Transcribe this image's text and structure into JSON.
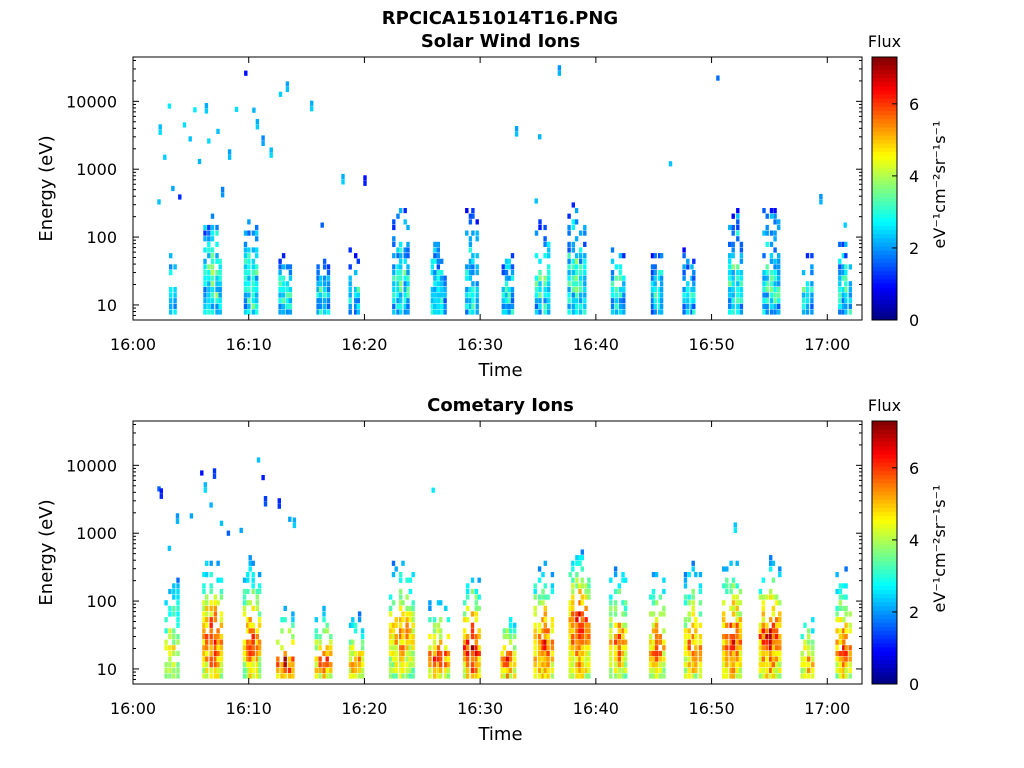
{
  "figure": {
    "title": "RPCICA151014T16.PNG"
  },
  "chart_data": [
    {
      "type": "heatmap",
      "title": "Solar Wind Ions",
      "xlabel": "Time",
      "ylabel": "Energy (eV)",
      "x_tick_labels": [
        "16:00",
        "16:10",
        "16:20",
        "16:30",
        "16:40",
        "16:50",
        "17:00"
      ],
      "x_range_minutes": [
        0,
        63
      ],
      "y_scale": "log",
      "y_range": [
        6,
        45000
      ],
      "y_tick_values": [
        10,
        100,
        1000,
        10000
      ],
      "y_tick_labels": [
        "10",
        "100",
        "1000",
        "10000"
      ],
      "colorbar": {
        "title": "Flux",
        "unit_label": "eV⁻¹cm⁻²sr⁻¹s⁻¹",
        "range": [
          0,
          7.3
        ],
        "tick_values": [
          0,
          2,
          4,
          6
        ],
        "tick_labels": [
          "0",
          "2",
          "4",
          "6"
        ],
        "colormap": "jet"
      },
      "intensity_scale": 0.55,
      "sparse_points": [
        [
          2.1,
          330,
          2.3
        ],
        [
          2.2,
          3500,
          2.5
        ],
        [
          2.6,
          1500,
          2.4
        ],
        [
          3.0,
          8500,
          2.6
        ],
        [
          3.3,
          520,
          2.1
        ],
        [
          3.9,
          390,
          1.2
        ],
        [
          4.3,
          4500,
          2.5
        ],
        [
          4.8,
          2800,
          2.3
        ],
        [
          5.2,
          7500,
          2.6
        ],
        [
          5.6,
          1300,
          2.2
        ],
        [
          6.2,
          7200,
          2.4
        ],
        [
          6.4,
          2600,
          2.5
        ],
        [
          7.2,
          3600,
          2.3
        ],
        [
          7.6,
          420,
          2.0
        ],
        [
          8.2,
          1500,
          2.3
        ],
        [
          8.8,
          7600,
          2.5
        ],
        [
          9.6,
          26000,
          1.0
        ],
        [
          10.3,
          7400,
          2.2
        ],
        [
          10.6,
          4200,
          2.4
        ],
        [
          11.1,
          2400,
          2.1
        ],
        [
          11.8,
          1600,
          2.5
        ],
        [
          12.6,
          12700,
          2.4
        ],
        [
          13.2,
          15000,
          2.3
        ],
        [
          15.3,
          7800,
          2.4
        ],
        [
          16.2,
          150,
          1.6
        ],
        [
          18.0,
          650,
          2.4
        ],
        [
          19.9,
          620,
          1.1
        ],
        [
          33.0,
          3300,
          2.3
        ],
        [
          35.0,
          3000,
          2.2
        ],
        [
          34.7,
          340,
          2.3
        ],
        [
          36.7,
          26000,
          2.2
        ],
        [
          46.3,
          1200,
          2.3
        ],
        [
          50.4,
          22000,
          1.7
        ],
        [
          59.3,
          330,
          2.2
        ],
        [
          61.4,
          150,
          2.4
        ]
      ],
      "bursts": [
        {
          "t": 3.5,
          "peak": 18,
          "top": 90,
          "intensity": 4.2,
          "width": 0.7
        },
        {
          "t": 6.9,
          "peak": 30,
          "top": 240,
          "intensity": 4.7,
          "width": 1.6
        },
        {
          "t": 10.2,
          "peak": 30,
          "top": 260,
          "intensity": 4.5,
          "width": 1.3
        },
        {
          "t": 13.2,
          "peak": 20,
          "top": 60,
          "intensity": 4.4,
          "width": 1.3
        },
        {
          "t": 16.4,
          "peak": 18,
          "top": 50,
          "intensity": 4.0,
          "width": 1.1
        },
        {
          "t": 19.2,
          "peak": 18,
          "top": 70,
          "intensity": 3.8,
          "width": 1.0
        },
        {
          "t": 23.2,
          "peak": 25,
          "top": 400,
          "intensity": 4.2,
          "width": 1.6
        },
        {
          "t": 26.4,
          "peak": 20,
          "top": 90,
          "intensity": 4.1,
          "width": 1.4
        },
        {
          "t": 29.3,
          "peak": 20,
          "top": 300,
          "intensity": 4.1,
          "width": 1.3
        },
        {
          "t": 32.4,
          "peak": 18,
          "top": 60,
          "intensity": 4.0,
          "width": 1.1
        },
        {
          "t": 35.4,
          "peak": 25,
          "top": 200,
          "intensity": 4.3,
          "width": 1.3
        },
        {
          "t": 38.4,
          "peak": 30,
          "top": 380,
          "intensity": 4.4,
          "width": 1.6
        },
        {
          "t": 42.0,
          "peak": 20,
          "top": 90,
          "intensity": 4.1,
          "width": 1.3
        },
        {
          "t": 45.3,
          "peak": 20,
          "top": 80,
          "intensity": 4.0,
          "width": 1.2
        },
        {
          "t": 48.1,
          "peak": 18,
          "top": 80,
          "intensity": 3.9,
          "width": 1.1
        },
        {
          "t": 52.1,
          "peak": 25,
          "top": 320,
          "intensity": 4.2,
          "width": 1.3
        },
        {
          "t": 55.2,
          "peak": 25,
          "top": 350,
          "intensity": 4.3,
          "width": 1.6
        },
        {
          "t": 58.3,
          "peak": 18,
          "top": 70,
          "intensity": 4.0,
          "width": 0.9
        },
        {
          "t": 61.5,
          "peak": 18,
          "top": 110,
          "intensity": 4.1,
          "width": 1.1
        }
      ]
    },
    {
      "type": "heatmap",
      "title": "Cometary Ions",
      "xlabel": "Time",
      "ylabel": "Energy (eV)",
      "x_tick_labels": [
        "16:00",
        "16:10",
        "16:20",
        "16:30",
        "16:40",
        "16:50",
        "17:00"
      ],
      "x_range_minutes": [
        0,
        63
      ],
      "y_scale": "log",
      "y_range": [
        6,
        45000
      ],
      "y_tick_values": [
        10,
        100,
        1000,
        10000
      ],
      "y_tick_labels": [
        "10",
        "100",
        "1000",
        "10000"
      ],
      "colorbar": {
        "title": "Flux",
        "unit_label": "eV⁻¹cm⁻²sr⁻¹s⁻¹",
        "range": [
          0,
          7.3
        ],
        "tick_values": [
          0,
          2,
          4,
          6
        ],
        "tick_labels": [
          "0",
          "2",
          "4",
          "6"
        ],
        "colormap": "jet"
      },
      "intensity_scale": 1.0,
      "sparse_points": [
        [
          2.1,
          4500,
          1.6
        ],
        [
          2.3,
          3500,
          1.2
        ],
        [
          3.0,
          600,
          2.3
        ],
        [
          3.7,
          1500,
          2.2
        ],
        [
          4.9,
          1800,
          2.1
        ],
        [
          5.8,
          7700,
          1.0
        ],
        [
          6.1,
          4300,
          2.5
        ],
        [
          6.6,
          2600,
          2.2
        ],
        [
          6.9,
          6900,
          1.4
        ],
        [
          7.5,
          1400,
          2.3
        ],
        [
          8.1,
          1000,
          1.6
        ],
        [
          9.2,
          1100,
          2.1
        ],
        [
          10.7,
          12000,
          2.3
        ],
        [
          11.1,
          6600,
          1.1
        ],
        [
          11.3,
          2700,
          1.5
        ],
        [
          12.5,
          2500,
          1.3
        ],
        [
          13.4,
          1600,
          2.1
        ],
        [
          13.8,
          1300,
          2.4
        ],
        [
          25.8,
          4300,
          2.6
        ],
        [
          51.9,
          1100,
          2.6
        ]
      ],
      "bursts": [
        {
          "t": 3.4,
          "peak": 13,
          "top": 420,
          "intensity": 5.0,
          "width": 1.3
        },
        {
          "t": 6.9,
          "peak": 30,
          "top": 480,
          "intensity": 6.4,
          "width": 1.9
        },
        {
          "t": 10.3,
          "peak": 25,
          "top": 450,
          "intensity": 6.0,
          "width": 1.7
        },
        {
          "t": 13.2,
          "peak": 12,
          "top": 80,
          "intensity": 6.6,
          "width": 1.6
        },
        {
          "t": 16.5,
          "peak": 13,
          "top": 90,
          "intensity": 6.0,
          "width": 1.5
        },
        {
          "t": 19.3,
          "peak": 12,
          "top": 70,
          "intensity": 5.8,
          "width": 1.4
        },
        {
          "t": 23.2,
          "peak": 35,
          "top": 500,
          "intensity": 5.6,
          "width": 2.2
        },
        {
          "t": 26.5,
          "peak": 15,
          "top": 110,
          "intensity": 6.3,
          "width": 1.9
        },
        {
          "t": 29.3,
          "peak": 20,
          "top": 300,
          "intensity": 6.6,
          "width": 1.6
        },
        {
          "t": 32.4,
          "peak": 13,
          "top": 70,
          "intensity": 6.2,
          "width": 1.4
        },
        {
          "t": 35.5,
          "peak": 25,
          "top": 400,
          "intensity": 6.3,
          "width": 1.7
        },
        {
          "t": 38.6,
          "peak": 50,
          "top": 600,
          "intensity": 6.4,
          "width": 2.0
        },
        {
          "t": 42.0,
          "peak": 25,
          "top": 400,
          "intensity": 5.7,
          "width": 1.6
        },
        {
          "t": 45.3,
          "peak": 20,
          "top": 380,
          "intensity": 5.8,
          "width": 1.5
        },
        {
          "t": 48.4,
          "peak": 20,
          "top": 420,
          "intensity": 5.9,
          "width": 1.6
        },
        {
          "t": 51.8,
          "peak": 30,
          "top": 500,
          "intensity": 6.4,
          "width": 1.7
        },
        {
          "t": 55.1,
          "peak": 30,
          "top": 450,
          "intensity": 6.5,
          "width": 2.0
        },
        {
          "t": 58.3,
          "peak": 13,
          "top": 80,
          "intensity": 5.7,
          "width": 1.3
        },
        {
          "t": 61.4,
          "peak": 20,
          "top": 350,
          "intensity": 6.1,
          "width": 1.5
        }
      ]
    }
  ]
}
